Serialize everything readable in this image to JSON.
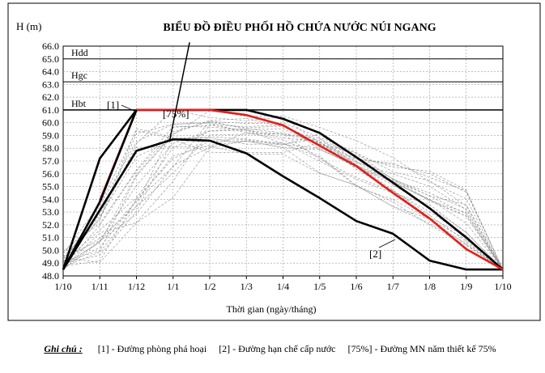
{
  "chart_data": {
    "type": "line",
    "title": "BIỂU ĐỒ ĐIỀU PHỐI HỒ CHỨA NƯỚC NÚI NGANG",
    "ylabel": "H (m)",
    "xlabel": "Thời gian (ngày/tháng)",
    "ylim": [
      48.0,
      66.0
    ],
    "ytick_step": 1.0,
    "yticks": [
      "48.0",
      "49.0",
      "50.0",
      "51.0",
      "52.0",
      "53.0",
      "54.0",
      "55.0",
      "56.0",
      "57.0",
      "58.0",
      "59.0",
      "60.0",
      "61.0",
      "62.0",
      "63.0",
      "64.0",
      "65.0",
      "66.0"
    ],
    "categories": [
      "1/10",
      "1/11",
      "1/12",
      "1/1",
      "1/2",
      "1/3",
      "1/4",
      "1/5",
      "1/6",
      "1/7",
      "1/8",
      "1/9",
      "1/10"
    ],
    "grid": true,
    "levels": [
      {
        "name": "Hdd",
        "value": 65.0
      },
      {
        "name": "Hgc",
        "value": 63.2
      },
      {
        "name": "Hbt",
        "value": 61.0
      }
    ],
    "series": [
      {
        "name": "[1]",
        "color": "#000000",
        "x": [
          0,
          1,
          2,
          5,
          6,
          7,
          8,
          9,
          10,
          11,
          12
        ],
        "values": [
          48.5,
          57.2,
          61.0,
          61.0,
          60.3,
          59.2,
          57.3,
          55.3,
          53.3,
          51.0,
          48.5
        ]
      },
      {
        "name": "[2]",
        "color": "#000000",
        "x": [
          0,
          2,
          3,
          4,
          5,
          6,
          7,
          8,
          9,
          10,
          11,
          12
        ],
        "values": [
          48.5,
          57.8,
          58.7,
          58.6,
          57.6,
          55.8,
          54.1,
          52.3,
          51.3,
          49.2,
          48.5,
          48.5
        ]
      },
      {
        "name": "[75%]",
        "color": "#e0201c",
        "x": [
          1,
          2,
          3,
          4,
          5,
          6,
          7,
          8,
          9,
          10,
          11,
          12
        ],
        "values": [
          53.9,
          61.0,
          61.0,
          61.0,
          60.6,
          59.8,
          58.2,
          56.6,
          54.5,
          52.5,
          50.1,
          48.5
        ]
      },
      {
        "name": "",
        "color": "#000000",
        "x": [
          0,
          1,
          2
        ],
        "values": [
          48.5,
          53.8,
          61.0
        ]
      },
      {
        "name": "",
        "color": "#000000",
        "x": [
          2.9,
          3.45
        ],
        "values": [
          58.5,
          66.3
        ]
      }
    ],
    "annotations": [
      "[1]",
      "[75%]",
      "[2]"
    ],
    "footnote": {
      "title": "Ghi chú :",
      "items": [
        "[1] - Đường phòng phá hoại",
        "[2] - Đường hạn chế cấp nước",
        "[75%] - Đường MN năm thiết kế 75%"
      ]
    }
  }
}
